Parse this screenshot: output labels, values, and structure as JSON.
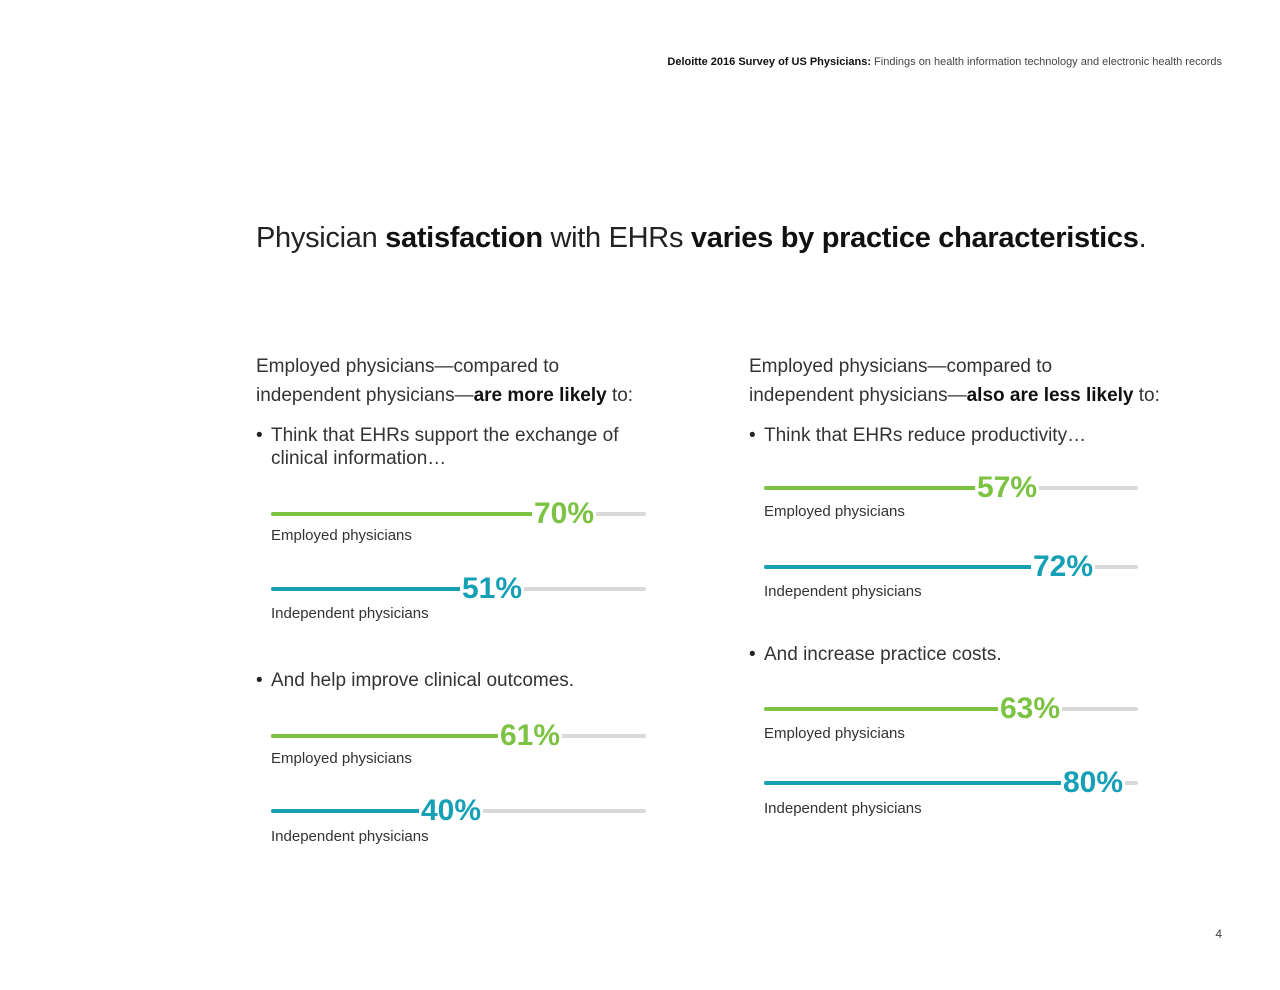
{
  "header": {
    "bold": "Deloitte 2016 Survey of US Physicians:",
    "rest": " Findings on health information technology and electronic health records"
  },
  "title": {
    "t1": "Physician ",
    "t2": "satisfaction",
    "t3": " with EHRs ",
    "t4": "varies by practice characteristics",
    "t5": "."
  },
  "left": {
    "intro_line1": "Employed physicians—compared to",
    "intro_line2a": "independent physicians—",
    "intro_line2b": "are more likely",
    "intro_line2c": " to:",
    "bullet1": "Think that EHRs support the exchange of clinical information…",
    "bullet1_bars": [
      {
        "label": "Employed physicians",
        "value": 70,
        "pct": "70%"
      },
      {
        "label": "Independent physicians",
        "value": 51,
        "pct": "51%"
      }
    ],
    "bullet2": "And help improve clinical outcomes.",
    "bullet2_bars": [
      {
        "label": "Employed physicians",
        "value": 61,
        "pct": "61%"
      },
      {
        "label": "Independent physicians",
        "value": 40,
        "pct": "40%"
      }
    ]
  },
  "right": {
    "intro_line1": "Employed physicians—compared to",
    "intro_line2a": "independent physicians—",
    "intro_line2b": "also are less likely",
    "intro_line2c": " to:",
    "bullet1": "Think that EHRs reduce productivity…",
    "bullet1_bars": [
      {
        "label": "Employed physicians",
        "value": 57,
        "pct": "57%"
      },
      {
        "label": "Independent physicians",
        "value": 72,
        "pct": "72%"
      }
    ],
    "bullet2": "And increase practice costs.",
    "bullet2_bars": [
      {
        "label": "Employed physicians",
        "value": 63,
        "pct": "63%"
      },
      {
        "label": "Independent physicians",
        "value": 80,
        "pct": "80%"
      }
    ]
  },
  "colors": {
    "employed": "#7cc243",
    "independent": "#16a0b6",
    "track": "#d9d9d9"
  },
  "page_number": "4"
}
